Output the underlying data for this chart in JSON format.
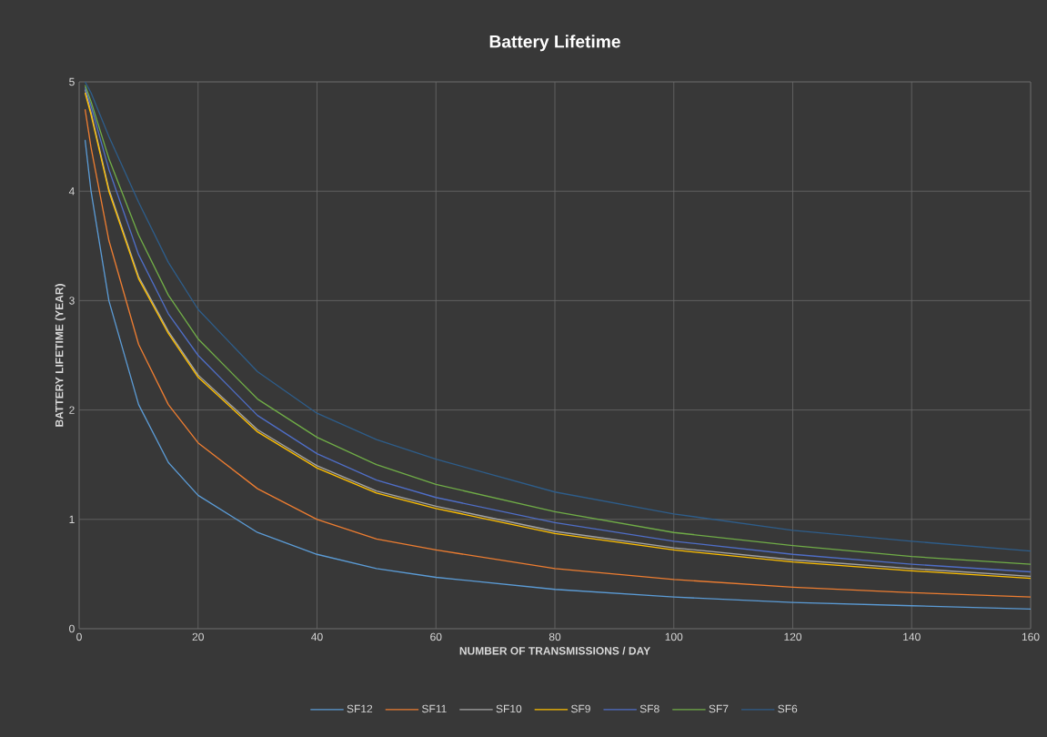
{
  "chart_data": {
    "type": "line",
    "title": "Battery  Lifetime",
    "xlabel": "NUMBER OF TRANSMISSIONS / DAY",
    "ylabel": "BATTERY LIFETIME (YEAR)",
    "x": [
      1,
      2,
      5,
      10,
      15,
      20,
      30,
      40,
      50,
      60,
      80,
      100,
      120,
      140,
      160
    ],
    "series": [
      {
        "name": "SF12",
        "color": "#5b9bd5",
        "values": [
          4.47,
          4.0,
          3.0,
          2.05,
          1.52,
          1.22,
          0.88,
          0.68,
          0.55,
          0.47,
          0.36,
          0.29,
          0.24,
          0.21,
          0.18
        ]
      },
      {
        "name": "SF11",
        "color": "#ed7d31",
        "values": [
          4.75,
          4.4,
          3.55,
          2.6,
          2.05,
          1.7,
          1.28,
          1.0,
          0.82,
          0.72,
          0.55,
          0.45,
          0.38,
          0.33,
          0.29
        ]
      },
      {
        "name": "SF10",
        "color": "#a5a5a5",
        "values": [
          4.93,
          4.72,
          4.02,
          3.22,
          2.72,
          2.32,
          1.82,
          1.49,
          1.26,
          1.12,
          0.89,
          0.74,
          0.63,
          0.55,
          0.48
        ]
      },
      {
        "name": "SF9",
        "color": "#ffc000",
        "values": [
          4.9,
          4.7,
          4.0,
          3.2,
          2.7,
          2.3,
          1.8,
          1.47,
          1.24,
          1.1,
          0.87,
          0.72,
          0.61,
          0.53,
          0.46
        ]
      },
      {
        "name": "SF8",
        "color": "#4f6ec7",
        "values": [
          4.95,
          4.78,
          4.2,
          3.42,
          2.88,
          2.5,
          1.95,
          1.6,
          1.36,
          1.2,
          0.97,
          0.8,
          0.68,
          0.59,
          0.52
        ]
      },
      {
        "name": "SF7",
        "color": "#70ad47",
        "values": [
          4.97,
          4.82,
          4.3,
          3.6,
          3.05,
          2.65,
          2.1,
          1.75,
          1.5,
          1.32,
          1.07,
          0.88,
          0.76,
          0.66,
          0.59
        ]
      },
      {
        "name": "SF6",
        "color": "#2e5d8a",
        "values": [
          5.0,
          4.9,
          4.5,
          3.9,
          3.35,
          2.92,
          2.35,
          1.97,
          1.73,
          1.55,
          1.25,
          1.05,
          0.9,
          0.8,
          0.71
        ]
      }
    ],
    "xlim": [
      0,
      160
    ],
    "ylim": [
      0,
      5
    ],
    "xticks": [
      0,
      20,
      40,
      60,
      80,
      100,
      120,
      140,
      160
    ],
    "yticks": [
      0,
      1,
      2,
      3,
      4,
      5
    ],
    "grid": true,
    "legend": "bottom",
    "marker": "none",
    "line_style": "solid"
  }
}
